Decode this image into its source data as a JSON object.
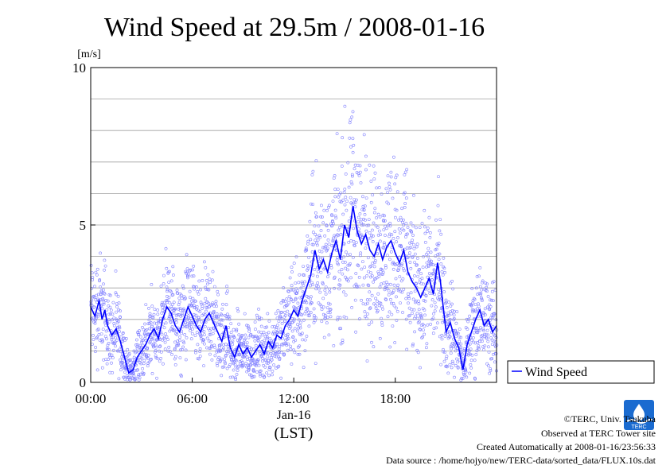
{
  "chart_data": {
    "type": "scatter",
    "title": "Wind Speed at 29.5m / 2008-01-16",
    "ylabel": "[m/s]",
    "xlabel": "(LST)",
    "x_date_label": "Jan-16",
    "ylim": [
      0,
      10
    ],
    "yticks": [
      0,
      5,
      10
    ],
    "xlim": [
      "00:00",
      "23:59"
    ],
    "xticks": [
      "00:00",
      "06:00",
      "12:00",
      "18:00"
    ],
    "grid": true,
    "legend": {
      "position": "right",
      "entries": [
        "Wind Speed"
      ]
    },
    "series": [
      {
        "name": "Wind Speed",
        "color": "#0000ff",
        "scatter_color": "#8080ff",
        "line_points": [
          [
            "00:00",
            2.4
          ],
          [
            "00:15",
            2.1
          ],
          [
            "00:30",
            2.6
          ],
          [
            "00:40",
            2.0
          ],
          [
            "00:50",
            2.3
          ],
          [
            "01:00",
            1.8
          ],
          [
            "01:15",
            1.5
          ],
          [
            "01:30",
            1.7
          ],
          [
            "01:45",
            1.3
          ],
          [
            "02:00",
            0.8
          ],
          [
            "02:15",
            0.3
          ],
          [
            "02:30",
            0.4
          ],
          [
            "02:45",
            0.8
          ],
          [
            "03:00",
            1.0
          ],
          [
            "03:15",
            1.2
          ],
          [
            "03:30",
            1.5
          ],
          [
            "03:45",
            1.7
          ],
          [
            "04:00",
            1.4
          ],
          [
            "04:15",
            2.0
          ],
          [
            "04:30",
            2.4
          ],
          [
            "04:45",
            2.2
          ],
          [
            "05:00",
            1.8
          ],
          [
            "05:15",
            1.6
          ],
          [
            "05:30",
            2.0
          ],
          [
            "05:45",
            2.4
          ],
          [
            "06:00",
            2.1
          ],
          [
            "06:15",
            1.8
          ],
          [
            "06:30",
            1.6
          ],
          [
            "06:45",
            2.0
          ],
          [
            "07:00",
            2.2
          ],
          [
            "07:15",
            1.9
          ],
          [
            "07:30",
            1.6
          ],
          [
            "07:45",
            1.3
          ],
          [
            "08:00",
            1.8
          ],
          [
            "08:15",
            1.1
          ],
          [
            "08:30",
            0.8
          ],
          [
            "08:45",
            1.2
          ],
          [
            "09:00",
            0.9
          ],
          [
            "09:15",
            1.1
          ],
          [
            "09:30",
            0.8
          ],
          [
            "09:45",
            1.0
          ],
          [
            "10:00",
            1.2
          ],
          [
            "10:15",
            0.9
          ],
          [
            "10:30",
            1.3
          ],
          [
            "10:45",
            1.1
          ],
          [
            "11:00",
            1.5
          ],
          [
            "11:15",
            1.4
          ],
          [
            "11:30",
            1.8
          ],
          [
            "11:45",
            2.0
          ],
          [
            "12:00",
            2.3
          ],
          [
            "12:15",
            2.1
          ],
          [
            "12:30",
            2.6
          ],
          [
            "12:45",
            3.0
          ],
          [
            "13:00",
            3.4
          ],
          [
            "13:15",
            4.2
          ],
          [
            "13:30",
            3.6
          ],
          [
            "13:45",
            3.9
          ],
          [
            "14:00",
            3.5
          ],
          [
            "14:15",
            4.1
          ],
          [
            "14:30",
            4.5
          ],
          [
            "14:45",
            3.9
          ],
          [
            "15:00",
            5.0
          ],
          [
            "15:15",
            4.6
          ],
          [
            "15:30",
            5.6
          ],
          [
            "15:45",
            4.8
          ],
          [
            "16:00",
            4.4
          ],
          [
            "16:15",
            4.7
          ],
          [
            "16:30",
            4.2
          ],
          [
            "16:45",
            4.0
          ],
          [
            "17:00",
            4.4
          ],
          [
            "17:15",
            3.9
          ],
          [
            "17:30",
            4.3
          ],
          [
            "17:45",
            4.5
          ],
          [
            "18:00",
            4.1
          ],
          [
            "18:15",
            3.8
          ],
          [
            "18:30",
            4.2
          ],
          [
            "18:45",
            3.5
          ],
          [
            "19:00",
            3.2
          ],
          [
            "19:15",
            3.0
          ],
          [
            "19:30",
            2.7
          ],
          [
            "19:45",
            3.0
          ],
          [
            "20:00",
            3.3
          ],
          [
            "20:15",
            2.8
          ],
          [
            "20:30",
            3.8
          ],
          [
            "20:40",
            3.2
          ],
          [
            "20:50",
            2.4
          ],
          [
            "21:00",
            1.6
          ],
          [
            "21:15",
            1.9
          ],
          [
            "21:30",
            1.4
          ],
          [
            "21:45",
            1.1
          ],
          [
            "22:00",
            0.4
          ],
          [
            "22:15",
            1.2
          ],
          [
            "22:30",
            1.6
          ],
          [
            "22:45",
            2.0
          ],
          [
            "23:00",
            2.3
          ],
          [
            "23:15",
            1.8
          ],
          [
            "23:30",
            2.0
          ],
          [
            "23:45",
            1.6
          ],
          [
            "23:59",
            1.8
          ]
        ]
      }
    ]
  },
  "footer": {
    "copyright": "©TERC, Univ. Tsukuba",
    "observed": "Observed at TERC Tower site",
    "created": "Created Automatically at 2008-01-16/23:56:33",
    "source": "Data source : /home/hojyo/new/TERC-data/sorted_data/FLUX.10s.dat",
    "logo_text": "TERC"
  }
}
